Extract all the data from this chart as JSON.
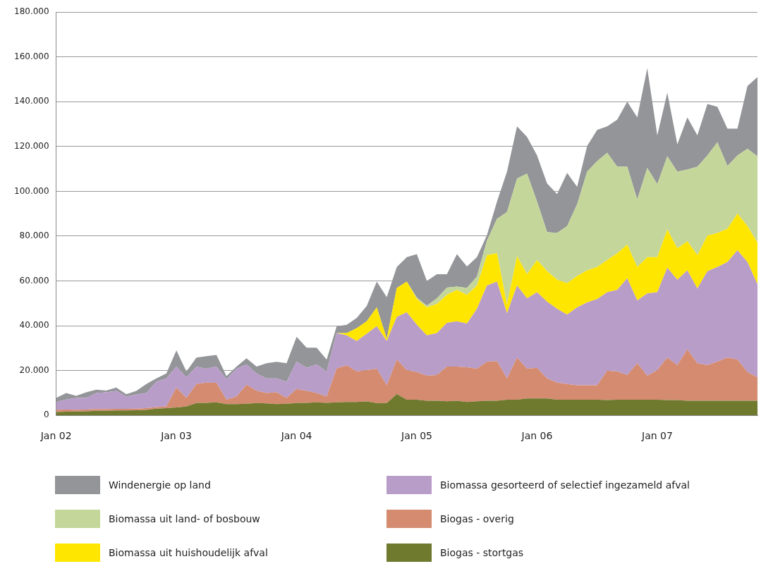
{
  "chart_data": {
    "type": "area",
    "stacked": true,
    "grid": "y",
    "legend": "bottom",
    "marker": "none",
    "categories": [
      "Jan 02",
      null,
      null,
      null,
      null,
      null,
      null,
      null,
      null,
      null,
      null,
      null,
      "Jan 03",
      null,
      null,
      null,
      null,
      null,
      null,
      null,
      null,
      null,
      null,
      null,
      "Jan 04",
      null,
      null,
      null,
      null,
      null,
      null,
      null,
      null,
      null,
      null,
      null,
      "Jan 05",
      null,
      null,
      null,
      null,
      null,
      null,
      null,
      null,
      null,
      null,
      null,
      "Jan 06",
      null,
      null,
      null,
      null,
      null,
      null,
      null,
      null,
      null,
      null,
      null,
      "Jan 07",
      null,
      null,
      null,
      null,
      null,
      null,
      null,
      null,
      null,
      null
    ],
    "ylim": [
      0,
      180000
    ],
    "yticks": [
      0,
      {
        "value": 20000,
        "label": "20.000"
      },
      {
        "value": 40000,
        "label": "40.000"
      },
      {
        "value": 60000,
        "label": "60.000"
      },
      {
        "value": 80000,
        "label": "80.000"
      },
      {
        "value": 100000,
        "label": "100.000"
      },
      {
        "value": 120000,
        "label": "120.000"
      },
      {
        "value": 140000,
        "label": "140.000"
      },
      {
        "value": 160000,
        "label": "160.000"
      },
      {
        "value": 180000,
        "label": "180.000"
      }
    ],
    "series": [
      {
        "name": "Biogas - stortgas",
        "color": "#6f7a2e",
        "values": [
          1500,
          1600,
          1700,
          1800,
          2000,
          2000,
          2200,
          2200,
          2300,
          2400,
          3000,
          3200,
          3500,
          4000,
          5500,
          5600,
          5800,
          5000,
          5000,
          5200,
          5500,
          5300,
          5000,
          5200,
          5500,
          5600,
          5800,
          5600,
          5800,
          6000,
          6000,
          6200,
          5500,
          5500,
          9500,
          7000,
          7000,
          6500,
          6500,
          6300,
          6500,
          6000,
          6300,
          6500,
          6500,
          7000,
          7000,
          7500,
          7500,
          7500,
          7000,
          7000,
          7000,
          7000,
          7000,
          6800,
          7000,
          7000,
          7000,
          7000,
          7000,
          6800,
          6800,
          6500,
          6500,
          6500,
          6500,
          6500,
          6500,
          6500,
          6500
        ]
      },
      {
        "name": "Biogas - overig",
        "color": "#d48b70",
        "values": [
          1000,
          1000,
          800,
          800,
          800,
          800,
          700,
          700,
          700,
          800,
          700,
          800,
          8900,
          3800,
          8500,
          9000,
          8700,
          2000,
          3400,
          8500,
          5500,
          4700,
          5300,
          2600,
          6300,
          5300,
          4200,
          2800,
          15200,
          16300,
          13600,
          14000,
          15300,
          7900,
          15400,
          13200,
          12300,
          11200,
          11500,
          15500,
          15300,
          15500,
          14500,
          17500,
          17700,
          9500,
          18800,
          13300,
          13700,
          9000,
          7600,
          7000,
          6400,
          6400,
          6400,
          13200,
          12600,
          11000,
          16300,
          10700,
          13200,
          19000,
          15600,
          23000,
          16800,
          15900,
          17500,
          19300,
          18400,
          12800,
          10500
        ]
      },
      {
        "name": "Biomassa gesorteerd of selectief ingezameld afval",
        "color": "#b99dc9",
        "values": [
          3500,
          4500,
          5300,
          5200,
          7200,
          7500,
          8000,
          5500,
          6300,
          6800,
          11300,
          12500,
          9400,
          9200,
          7800,
          6200,
          7300,
          9200,
          12400,
          9000,
          7700,
          6500,
          6200,
          7200,
          12200,
          10300,
          12700,
          11200,
          15700,
          13400,
          13600,
          16200,
          19000,
          19800,
          19100,
          25800,
          21100,
          18000,
          18700,
          19500,
          20200,
          19500,
          26800,
          34000,
          35500,
          29000,
          32200,
          31400,
          33800,
          34200,
          33000,
          31000,
          34800,
          37000,
          38500,
          35000,
          36400,
          43200,
          28000,
          36700,
          34800,
          40100,
          38200,
          35200,
          33300,
          41900,
          42200,
          42600,
          48800,
          49100,
          41400
        ]
      },
      {
        "name": "Biomassa uit huishoudelijk afval",
        "color": "#ffe600",
        "values": [
          0,
          0,
          0,
          0,
          0,
          0,
          0,
          0,
          0,
          0,
          0,
          0,
          0,
          0,
          0,
          0,
          0,
          0,
          0,
          0,
          0,
          0,
          0,
          0,
          0,
          0,
          0,
          0,
          0,
          1000,
          5700,
          5600,
          8400,
          1000,
          12900,
          13700,
          11600,
          12500,
          13000,
          12500,
          14000,
          12800,
          10400,
          13500,
          12700,
          4000,
          13000,
          10800,
          14300,
          13600,
          13000,
          14000,
          14000,
          14300,
          14300,
          14300,
          16400,
          15000,
          14900,
          16200,
          15600,
          17100,
          14000,
          13000,
          14900,
          15900,
          15200,
          14900,
          16400,
          16100,
          18600
        ]
      },
      {
        "name": "Biomassa uit land- of bosbouw",
        "color": "#c5d69b",
        "values": [
          0,
          0,
          0,
          0,
          0,
          0,
          0,
          0,
          0,
          0,
          0,
          0,
          0,
          0,
          0,
          0,
          0,
          0,
          0,
          0,
          0,
          0,
          0,
          0,
          0,
          0,
          0,
          0,
          0,
          0,
          0,
          0,
          0,
          0,
          0,
          0,
          500,
          800,
          2500,
          3200,
          1500,
          3100,
          4000,
          6500,
          15300,
          41300,
          34700,
          44900,
          26100,
          17500,
          20800,
          25500,
          32000,
          44100,
          47300,
          47900,
          38600,
          34800,
          30200,
          39800,
          32600,
          32600,
          34200,
          32000,
          39500,
          35800,
          40500,
          28000,
          25900,
          34500,
          38600
        ]
      },
      {
        "name": "Windenergie op land",
        "color": "#939598",
        "values": [
          1800,
          2900,
          900,
          2500,
          1500,
          800,
          1500,
          1000,
          1600,
          4000,
          1500,
          2200,
          7200,
          2600,
          4000,
          5600,
          5200,
          1300,
          1000,
          2800,
          3100,
          6800,
          7400,
          8300,
          11100,
          9000,
          7500,
          5300,
          3100,
          3700,
          4600,
          6800,
          11500,
          18600,
          9300,
          10900,
          19500,
          11000,
          10800,
          6000,
          14500,
          9600,
          8600,
          2500,
          7700,
          18000,
          23300,
          16400,
          20600,
          21700,
          17400,
          23700,
          7800,
          11500,
          13900,
          11800,
          21000,
          29000,
          36600,
          44600,
          21800,
          28400,
          12200,
          23300,
          14000,
          23000,
          15800,
          16700,
          12000,
          28000,
          35400
        ]
      }
    ]
  }
}
